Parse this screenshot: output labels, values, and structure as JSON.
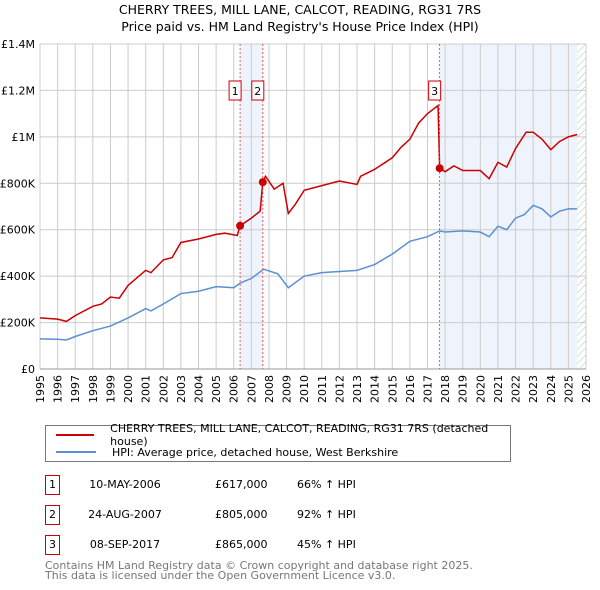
{
  "title": "CHERRY TREES, MILL LANE, CALCOT, READING, RG31 7RS",
  "subtitle": "Price paid vs. HM Land Registry's House Price Index (HPI)",
  "chart_data": {
    "type": "line",
    "xlim": [
      1995,
      2026
    ],
    "ylim": [
      0,
      1400000
    ],
    "x_ticks": [
      "1995",
      "1996",
      "1997",
      "1998",
      "1999",
      "2000",
      "2001",
      "2002",
      "2003",
      "2004",
      "2005",
      "2006",
      "2007",
      "2008",
      "2009",
      "2010",
      "2011",
      "2012",
      "2013",
      "2014",
      "2015",
      "2016",
      "2017",
      "2018",
      "2019",
      "2020",
      "2021",
      "2022",
      "2023",
      "2024",
      "2025",
      "2026"
    ],
    "y_ticks": [
      {
        "v": 0,
        "label": "£0"
      },
      {
        "v": 200000,
        "label": "£200K"
      },
      {
        "v": 400000,
        "label": "£400K"
      },
      {
        "v": 600000,
        "label": "£600K"
      },
      {
        "v": 800000,
        "label": "£800K"
      },
      {
        "v": 1000000,
        "label": "£1M"
      },
      {
        "v": 1200000,
        "label": "£1.2M"
      },
      {
        "v": 1400000,
        "label": "£1.4M"
      }
    ],
    "grid": true,
    "shaded_ranges": [
      [
        2006.36,
        2007.65
      ],
      [
        2017.69,
        2025.5
      ]
    ],
    "hatched_from": 2025.5,
    "series": [
      {
        "name": "CHERRY TREES, MILL LANE, CALCOT, READING, RG31 7RS (detached house)",
        "color": "#cc0000",
        "x": [
          1995,
          1996,
          1996.5,
          1997,
          1998,
          1998.5,
          1999,
          1999.5,
          2000,
          2001,
          2001.3,
          2002,
          2002.5,
          2003,
          2004,
          2005,
          2005.5,
          2006.2,
          2006.36,
          2007,
          2007.5,
          2007.65,
          2007.8,
          2008.3,
          2008.8,
          2009.1,
          2009.5,
          2010,
          2011,
          2012,
          2013,
          2013.2,
          2014,
          2015,
          2015.5,
          2016,
          2016.5,
          2017,
          2017.6,
          2017.69,
          2018,
          2018.5,
          2019,
          2020,
          2020.5,
          2021,
          2021.5,
          2022,
          2022.6,
          2023,
          2023.5,
          2024,
          2024.5,
          2025,
          2025.5
        ],
        "y": [
          220000,
          215000,
          205000,
          230000,
          270000,
          280000,
          310000,
          305000,
          360000,
          425000,
          415000,
          470000,
          480000,
          545000,
          560000,
          580000,
          585000,
          575000,
          617000,
          650000,
          680000,
          805000,
          830000,
          775000,
          800000,
          670000,
          710000,
          770000,
          790000,
          810000,
          795000,
          830000,
          860000,
          910000,
          955000,
          990000,
          1060000,
          1100000,
          1135000,
          865000,
          850000,
          875000,
          855000,
          855000,
          820000,
          890000,
          870000,
          950000,
          1020000,
          1020000,
          990000,
          945000,
          980000,
          1000000,
          1010000
        ]
      },
      {
        "name": "HPI: Average price, detached house, West Berkshire",
        "color": "#5b8fd4",
        "x": [
          1995,
          1996,
          1996.5,
          1997,
          1998,
          1999,
          2000,
          2001,
          2001.3,
          2002,
          2003,
          2004,
          2005,
          2006,
          2006.36,
          2007,
          2007.7,
          2008.5,
          2009.1,
          2010,
          2011,
          2012,
          2013,
          2014,
          2015,
          2016,
          2017,
          2017.7,
          2018,
          2019,
          2020,
          2020.5,
          2021,
          2021.5,
          2022,
          2022.5,
          2023,
          2023.5,
          2024,
          2024.5,
          2025,
          2025.5
        ],
        "y": [
          130000,
          128000,
          125000,
          140000,
          165000,
          185000,
          220000,
          260000,
          250000,
          280000,
          325000,
          335000,
          355000,
          350000,
          370000,
          390000,
          430000,
          410000,
          350000,
          400000,
          415000,
          420000,
          425000,
          450000,
          495000,
          550000,
          570000,
          595000,
          590000,
          595000,
          590000,
          570000,
          615000,
          600000,
          650000,
          665000,
          705000,
          690000,
          655000,
          680000,
          690000,
          690000
        ]
      }
    ],
    "annotations": [
      {
        "label": "1",
        "x": 2006.36,
        "y": 617000
      },
      {
        "label": "2",
        "x": 2007.65,
        "y": 805000
      },
      {
        "label": "3",
        "x": 2017.69,
        "y": 865000
      }
    ],
    "legend_placement": "below"
  },
  "legend": {
    "red": "CHERRY TREES, MILL LANE, CALCOT, READING, RG31 7RS (detached house)",
    "blue": "HPI: Average price, detached house, West Berkshire"
  },
  "transactions": [
    {
      "num": "1",
      "date": "10-MAY-2006",
      "price": "£617,000",
      "hpi": "66% ↑ HPI"
    },
    {
      "num": "2",
      "date": "24-AUG-2007",
      "price": "£805,000",
      "hpi": "92% ↑ HPI"
    },
    {
      "num": "3",
      "date": "08-SEP-2017",
      "price": "£865,000",
      "hpi": "45% ↑ HPI"
    }
  ],
  "footer": [
    "Contains HM Land Registry data © Crown copyright and database right 2025.",
    "This data is licensed under the Open Government Licence v3.0."
  ]
}
